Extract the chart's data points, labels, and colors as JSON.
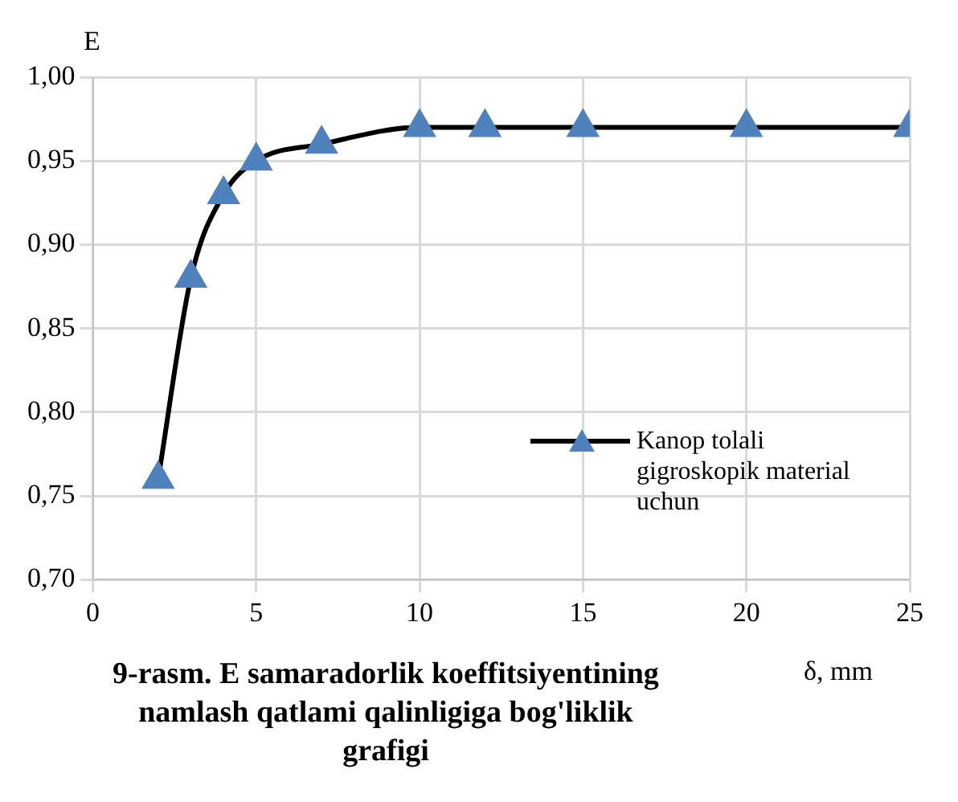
{
  "chart_data": {
    "type": "line",
    "title": "9-rasm. E samaradorlik koeffitsiyentining namlash qatlami qalinligiga bog'liklik grafigi",
    "xlabel": "δ, mm",
    "ylabel": "E",
    "x": [
      2,
      3,
      4,
      5,
      7,
      10,
      12,
      15,
      20,
      25
    ],
    "series": [
      {
        "name": "Kanop tolali gigroskopik material uchun",
        "color": "#4f81bd",
        "values": [
          0.76,
          0.88,
          0.93,
          0.95,
          0.96,
          0.97,
          0.97,
          0.97,
          0.97,
          0.97
        ]
      }
    ],
    "xlim": [
      0,
      25
    ],
    "xticks": [
      0,
      5,
      10,
      15,
      20,
      25
    ],
    "ylim": [
      0.7,
      1.0
    ],
    "yticks": [
      {
        "value": 0.7,
        "label": "0,70"
      },
      {
        "value": 0.75,
        "label": "0,75"
      },
      {
        "value": 0.8,
        "label": "0,80"
      },
      {
        "value": 0.85,
        "label": "0,85"
      },
      {
        "value": 0.9,
        "label": "0,90"
      },
      {
        "value": 0.95,
        "label": "0,95"
      },
      {
        "value": 1.0,
        "label": "1,00"
      }
    ],
    "grid": true,
    "legend": "right",
    "marker": "triangle",
    "line_style": "solid"
  }
}
